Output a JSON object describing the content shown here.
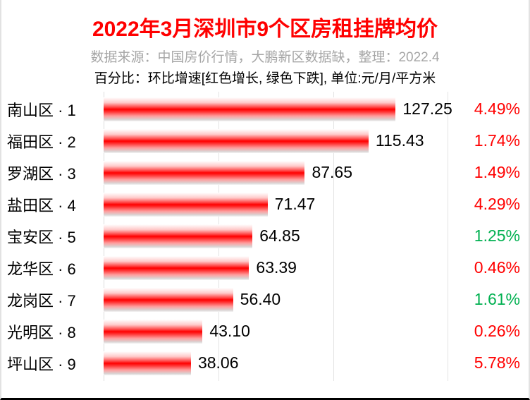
{
  "header": {
    "title": "2022年3月深圳市9个区房租挂牌均价",
    "subtitle": "数据来源：中国房价行情，大鹏新区数据缺，整理：2022.4",
    "note": "百分比：环比增速[红色增长, 绿色下跌], 单位:元/月/平方米"
  },
  "chart_data": {
    "type": "bar",
    "orientation": "horizontal",
    "title": "2022年3月深圳市9个区房租挂牌均价",
    "subtitle": "数据来源：中国房价行情，大鹏新区数据缺，整理：2022.4",
    "annotation": "百分比：环比增速[红色增长, 绿色下跌], 单位:元/月/平方米",
    "unit": "元/月/平方米",
    "categories": [
      "南山区 · 1",
      "福田区 · 2",
      "罗湖区 · 3",
      "盐田区 · 4",
      "宝安区 · 5",
      "龙华区 · 6",
      "龙岗区 · 7",
      "光明区 · 8",
      "坪山区 · 9"
    ],
    "values": [
      127.25,
      115.43,
      87.65,
      71.47,
      64.85,
      63.39,
      56.4,
      43.1,
      38.06
    ],
    "pct_change": [
      "4.49%",
      "1.74%",
      "1.49%",
      "4.29%",
      "1.25%",
      "0.46%",
      "1.61%",
      "0.26%",
      "5.78%"
    ],
    "pct_colors": [
      "red",
      "red",
      "red",
      "red",
      "green",
      "red",
      "green",
      "red",
      "red"
    ],
    "xlim": [
      0,
      152
    ],
    "gridlines": [
      50,
      100,
      150
    ],
    "legend_position": "none",
    "grid": true,
    "colors": {
      "bar": "#ff0000",
      "red": "#ff0000",
      "green": "#00b050",
      "title": "#ff0000",
      "subtitle": "#a6a6a6",
      "gridline": "#e4e4e4"
    }
  }
}
